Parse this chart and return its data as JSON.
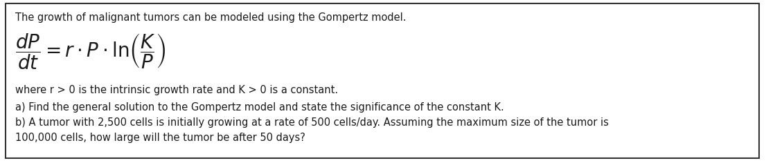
{
  "bg_color": "#ffffff",
  "border_color": "#333333",
  "border_linewidth": 1.5,
  "title_line": "The growth of malignant tumors can be modeled using the Gompertz model.",
  "where_line": "where r > 0 is the intrinsic growth rate and K > 0 is a constant.",
  "part_a": "a) Find the general solution to the Gompertz model and state the significance of the constant K.",
  "part_b1": "b) A tumor with 2,500 cells is initially growing at a rate of 500 cells/day. Assuming the maximum size of the tumor is",
  "part_b2": "100,000 cells, how large will the tumor be after 50 days?",
  "font_size_title": 10.5,
  "font_size_body": 10.5,
  "text_color": "#1a1a1a"
}
